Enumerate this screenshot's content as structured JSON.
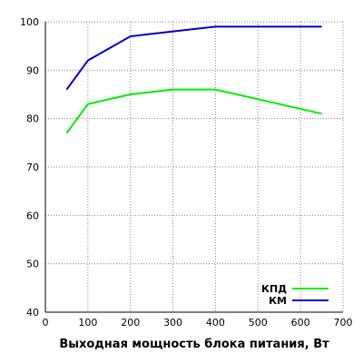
{
  "chart_data": {
    "type": "line",
    "title": "",
    "xlabel": "Выходная мощность блока питания, Вт",
    "ylabel": "",
    "xlim": [
      0,
      700
    ],
    "ylim": [
      40,
      100
    ],
    "xticks": [
      0,
      100,
      200,
      300,
      400,
      500,
      600,
      700
    ],
    "yticks": [
      40,
      50,
      60,
      70,
      80,
      90,
      100
    ],
    "grid": true,
    "legend_position": "bottom-right",
    "series": [
      {
        "name": "КПД",
        "color": "#00ee00",
        "x": [
          50,
          100,
          200,
          300,
          400,
          500,
          650
        ],
        "y": [
          77,
          83,
          85,
          86,
          86,
          84,
          81
        ]
      },
      {
        "name": "КМ",
        "color": "#0000cc",
        "x": [
          50,
          100,
          200,
          300,
          400,
          500,
          650
        ],
        "y": [
          86,
          92,
          97,
          98,
          99,
          99,
          99
        ]
      }
    ]
  }
}
